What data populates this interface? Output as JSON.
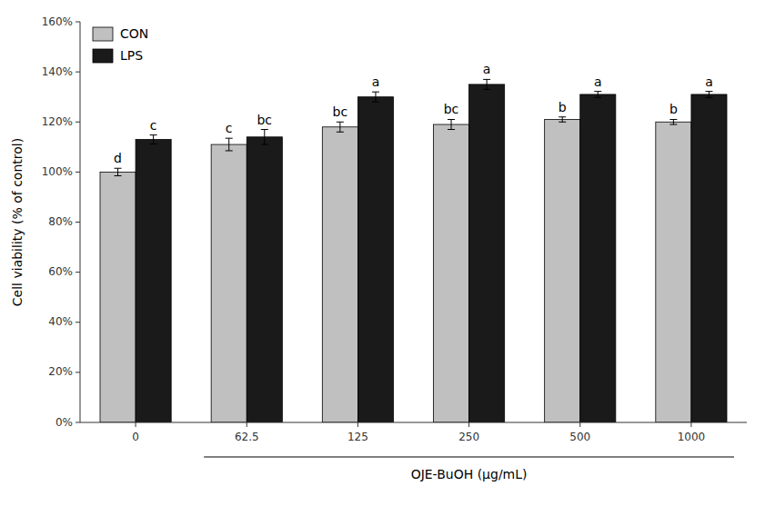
{
  "chart_data": {
    "type": "bar",
    "categories": [
      "0",
      "62.5",
      "125",
      "250",
      "500",
      "1000"
    ],
    "series": [
      {
        "name": "CON",
        "color": "#c0c0c0",
        "values": [
          1.0,
          1.11,
          1.18,
          1.19,
          1.21,
          1.2
        ],
        "errors": [
          0.015,
          0.025,
          0.02,
          0.02,
          0.01,
          0.01
        ],
        "annotations": [
          "d",
          "c",
          "bc",
          "bc",
          "b",
          "b"
        ]
      },
      {
        "name": "LPS",
        "color": "#1a1a1a",
        "values": [
          1.13,
          1.14,
          1.3,
          1.35,
          1.31,
          1.31
        ],
        "errors": [
          0.018,
          0.03,
          0.02,
          0.02,
          0.012,
          0.012
        ],
        "annotations": [
          "c",
          "bc",
          "a",
          "a",
          "a",
          "a"
        ]
      }
    ],
    "y_label": "Cell viability (% of control)",
    "x_label": "OJE-BuOH (μg/mL)",
    "ylim": [
      0.0,
      1.6
    ],
    "yticks": [
      {
        "value": 0.0,
        "label": "0%"
      },
      {
        "value": 0.2,
        "label": "20%"
      },
      {
        "value": 0.4,
        "label": "40%"
      },
      {
        "value": 0.6,
        "label": "60%"
      },
      {
        "value": 0.8,
        "label": "80%"
      },
      {
        "value": 1.0,
        "label": "100%"
      },
      {
        "value": 1.2,
        "label": "120%"
      },
      {
        "value": 1.4,
        "label": "140%"
      },
      {
        "value": 1.6,
        "label": "160%"
      }
    ],
    "legend": "upper left",
    "grid": false
  }
}
